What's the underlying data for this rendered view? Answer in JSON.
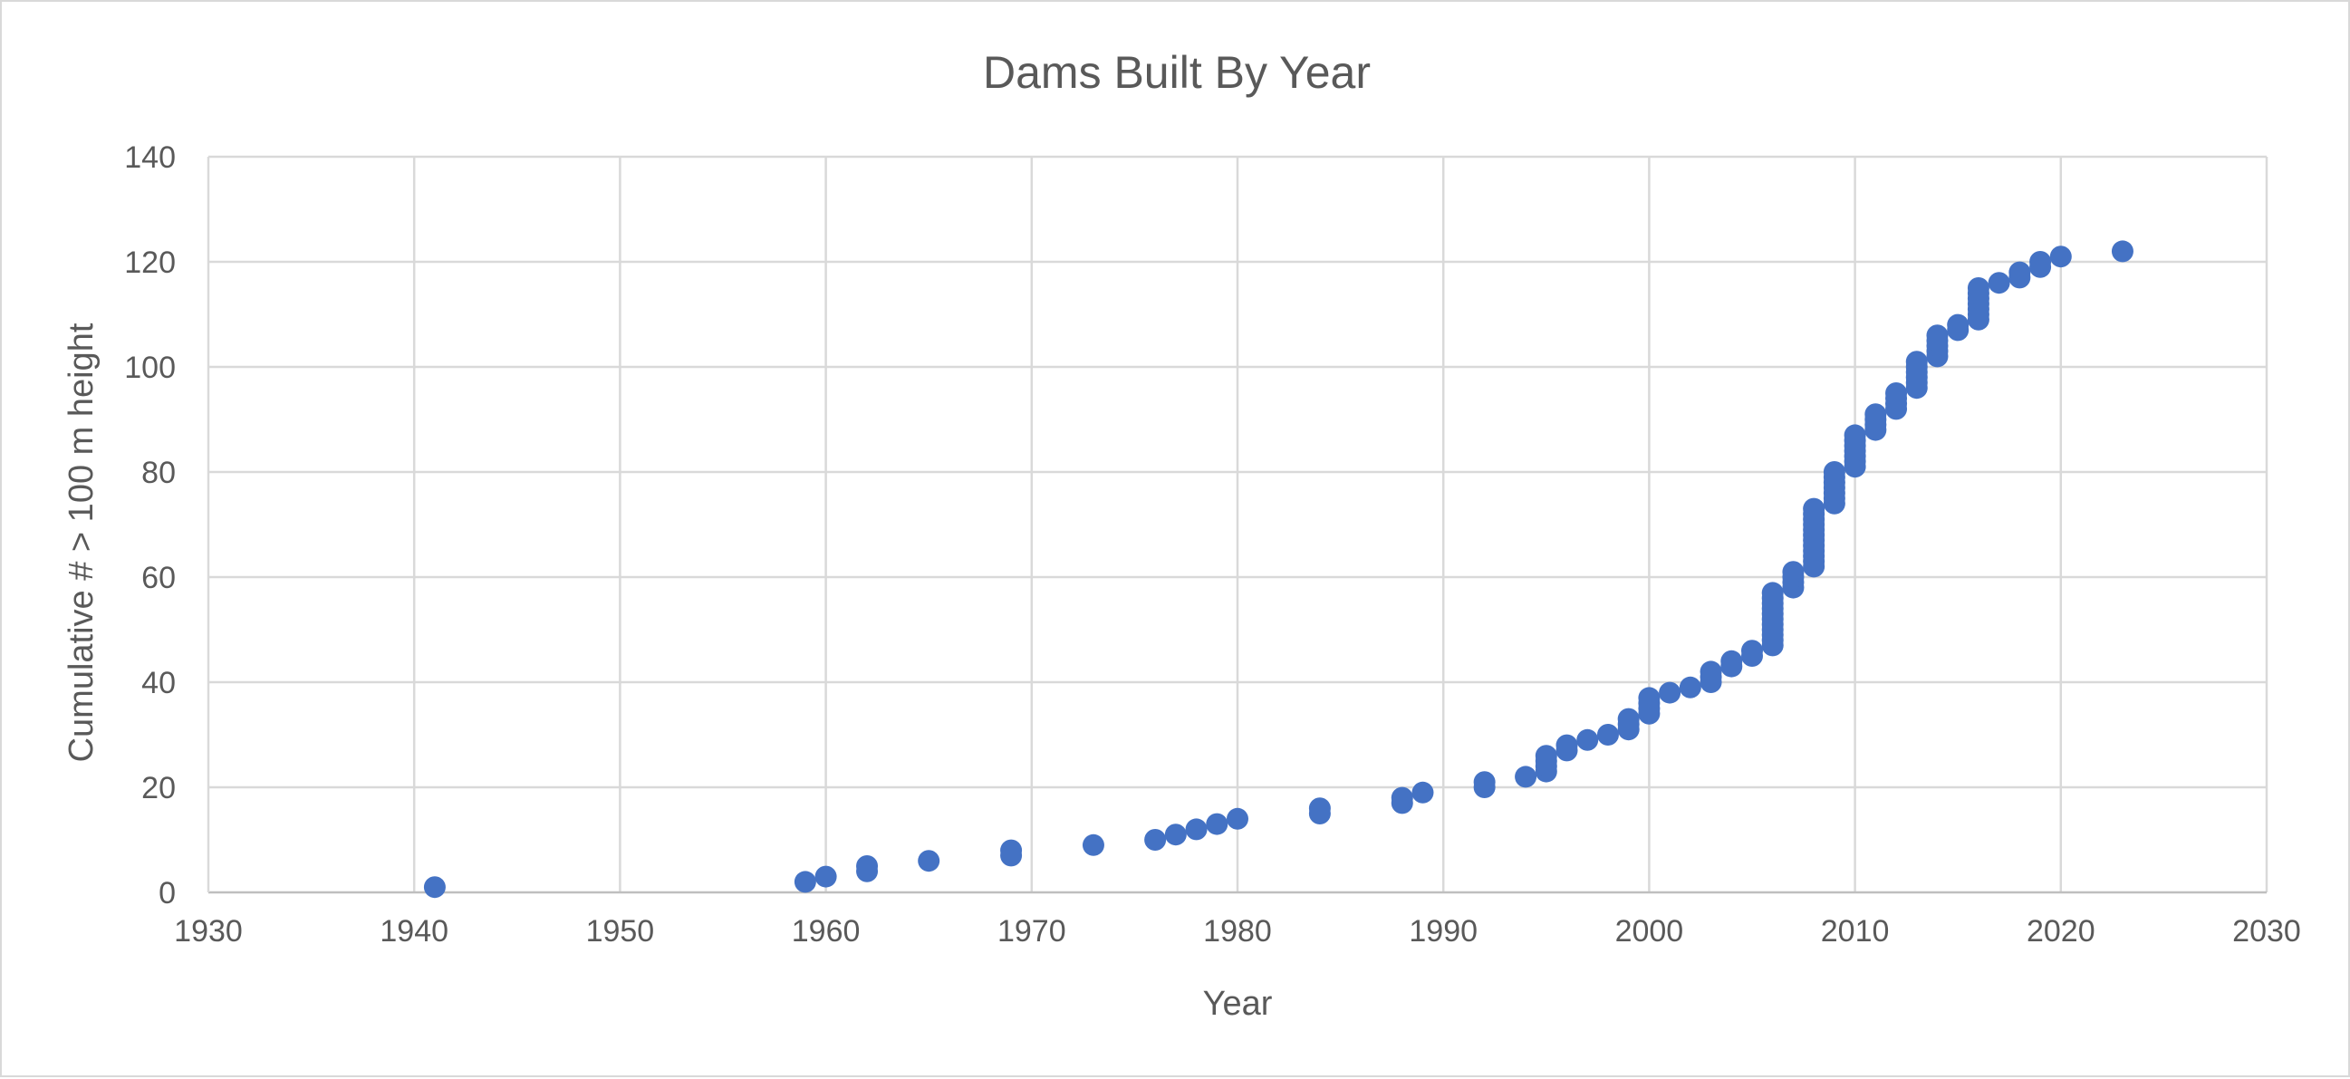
{
  "chart_data": {
    "type": "scatter",
    "title": "Dams Built By Year",
    "xlabel": "Year",
    "ylabel": "Cumulative # > 100 m height",
    "xlim": [
      1930,
      2030
    ],
    "ylim": [
      0,
      140
    ],
    "x_ticks": [
      "1930",
      "1940",
      "1950",
      "1960",
      "1970",
      "1980",
      "1990",
      "2000",
      "2010",
      "2020",
      "2030"
    ],
    "y_ticks": [
      "0",
      "20",
      "40",
      "60",
      "80",
      "100",
      "120",
      "140"
    ],
    "grid": true,
    "legend": "none",
    "marker_color": "#4472C4",
    "series": [
      {
        "points": [
          [
            1941,
            1
          ],
          [
            1959,
            2
          ],
          [
            1960,
            3
          ],
          [
            1962,
            4
          ],
          [
            1962,
            5
          ],
          [
            1965,
            6
          ],
          [
            1969,
            7
          ],
          [
            1969,
            8
          ],
          [
            1973,
            9
          ],
          [
            1976,
            10
          ],
          [
            1977,
            11
          ],
          [
            1978,
            12
          ],
          [
            1979,
            13
          ],
          [
            1980,
            14
          ],
          [
            1984,
            15
          ],
          [
            1984,
            16
          ],
          [
            1988,
            17
          ],
          [
            1988,
            18
          ],
          [
            1989,
            19
          ],
          [
            1992,
            20
          ],
          [
            1992,
            21
          ],
          [
            1994,
            22
          ],
          [
            1995,
            23
          ],
          [
            1995,
            24
          ],
          [
            1995,
            25
          ],
          [
            1995,
            26
          ],
          [
            1996,
            27
          ],
          [
            1996,
            28
          ],
          [
            1997,
            29
          ],
          [
            1998,
            30
          ],
          [
            1999,
            31
          ],
          [
            1999,
            32
          ],
          [
            1999,
            33
          ],
          [
            2000,
            34
          ],
          [
            2000,
            35
          ],
          [
            2000,
            36
          ],
          [
            2000,
            37
          ],
          [
            2001,
            38
          ],
          [
            2002,
            39
          ],
          [
            2003,
            40
          ],
          [
            2003,
            41
          ],
          [
            2003,
            42
          ],
          [
            2004,
            43
          ],
          [
            2004,
            44
          ],
          [
            2005,
            45
          ],
          [
            2005,
            46
          ],
          [
            2006,
            47
          ],
          [
            2006,
            48
          ],
          [
            2006,
            49
          ],
          [
            2006,
            50
          ],
          [
            2006,
            51
          ],
          [
            2006,
            52
          ],
          [
            2006,
            53
          ],
          [
            2006,
            54
          ],
          [
            2006,
            55
          ],
          [
            2006,
            56
          ],
          [
            2006,
            57
          ],
          [
            2007,
            58
          ],
          [
            2007,
            59
          ],
          [
            2007,
            60
          ],
          [
            2007,
            61
          ],
          [
            2008,
            62
          ],
          [
            2008,
            63
          ],
          [
            2008,
            64
          ],
          [
            2008,
            65
          ],
          [
            2008,
            66
          ],
          [
            2008,
            67
          ],
          [
            2008,
            68
          ],
          [
            2008,
            69
          ],
          [
            2008,
            70
          ],
          [
            2008,
            71
          ],
          [
            2008,
            72
          ],
          [
            2008,
            73
          ],
          [
            2009,
            74
          ],
          [
            2009,
            75
          ],
          [
            2009,
            76
          ],
          [
            2009,
            77
          ],
          [
            2009,
            78
          ],
          [
            2009,
            79
          ],
          [
            2009,
            80
          ],
          [
            2010,
            81
          ],
          [
            2010,
            82
          ],
          [
            2010,
            83
          ],
          [
            2010,
            84
          ],
          [
            2010,
            85
          ],
          [
            2010,
            86
          ],
          [
            2010,
            87
          ],
          [
            2011,
            88
          ],
          [
            2011,
            89
          ],
          [
            2011,
            90
          ],
          [
            2011,
            91
          ],
          [
            2012,
            92
          ],
          [
            2012,
            93
          ],
          [
            2012,
            94
          ],
          [
            2012,
            95
          ],
          [
            2013,
            96
          ],
          [
            2013,
            97
          ],
          [
            2013,
            98
          ],
          [
            2013,
            99
          ],
          [
            2013,
            100
          ],
          [
            2013,
            101
          ],
          [
            2014,
            102
          ],
          [
            2014,
            103
          ],
          [
            2014,
            104
          ],
          [
            2014,
            105
          ],
          [
            2014,
            106
          ],
          [
            2015,
            107
          ],
          [
            2015,
            108
          ],
          [
            2016,
            109
          ],
          [
            2016,
            110
          ],
          [
            2016,
            111
          ],
          [
            2016,
            112
          ],
          [
            2016,
            113
          ],
          [
            2016,
            114
          ],
          [
            2016,
            115
          ],
          [
            2017,
            116
          ],
          [
            2018,
            117
          ],
          [
            2018,
            118
          ],
          [
            2019,
            119
          ],
          [
            2019,
            120
          ],
          [
            2020,
            121
          ],
          [
            2023,
            122
          ]
        ]
      }
    ]
  }
}
